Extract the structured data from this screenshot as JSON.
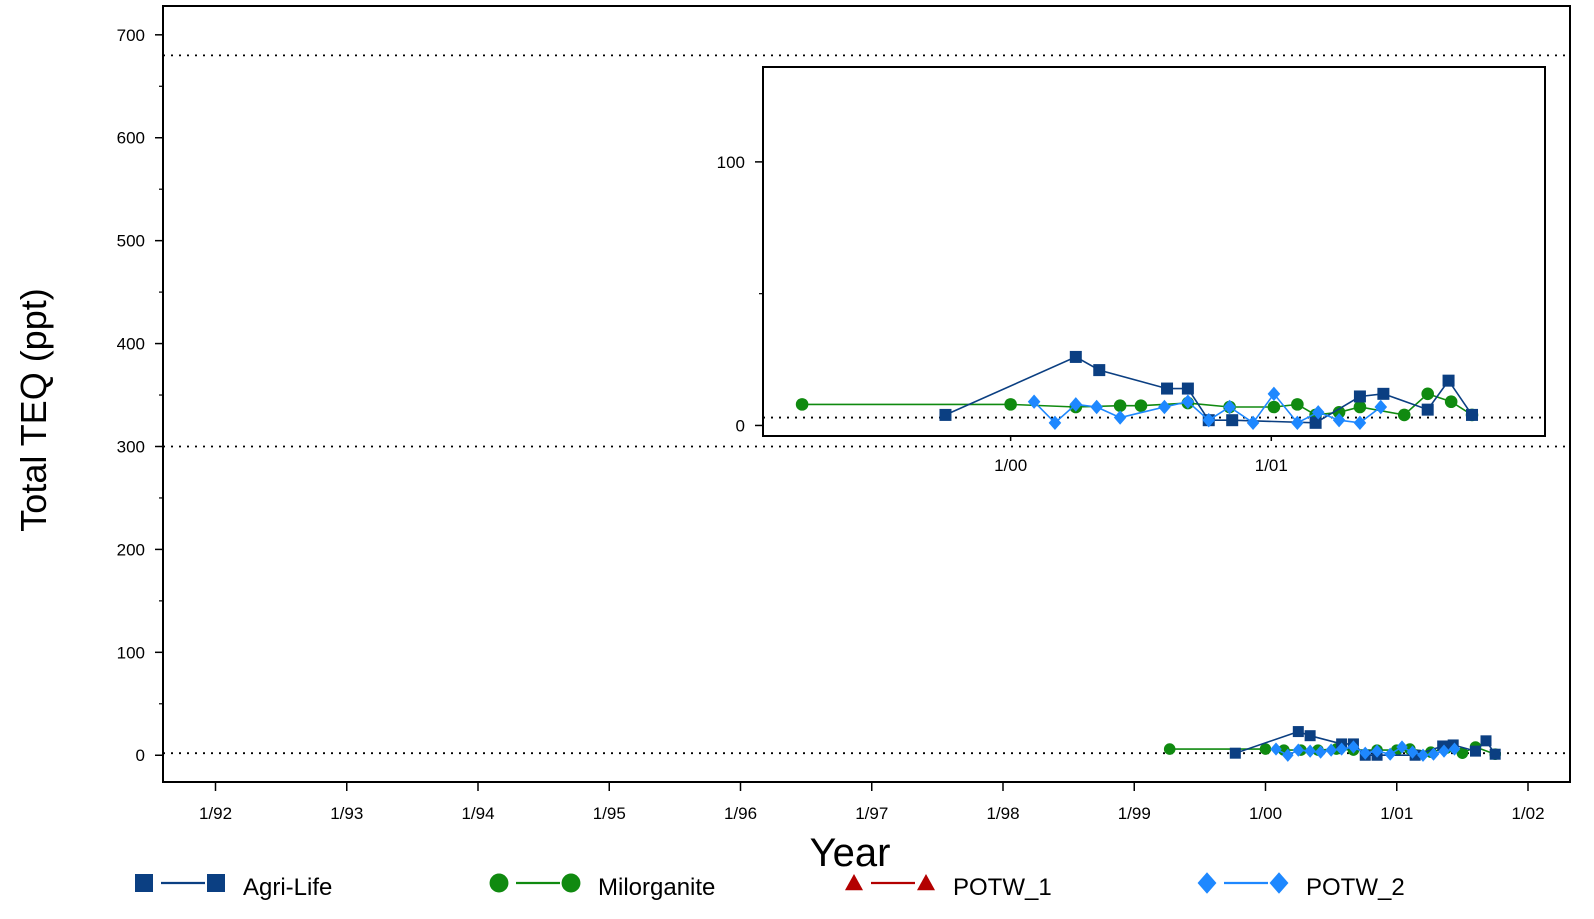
{
  "chart_data": [
    {
      "type": "line",
      "panel": "main",
      "xlabel": "Year",
      "ylabel": "Total TEQ (ppt)",
      "x_ticks": [
        "1/92",
        "1/93",
        "1/94",
        "1/95",
        "1/96",
        "1/97",
        "1/98",
        "1/99",
        "1/00",
        "1/01",
        "1/02"
      ],
      "y_ticks": [
        "0",
        "100",
        "200",
        "300",
        "400",
        "500",
        "600",
        "700"
      ],
      "xlim": [
        1991.6,
        2002.32
      ],
      "ylim": [
        -26,
        728
      ],
      "grid": false,
      "reference_lines": [
        2,
        300,
        680
      ],
      "legend_position": "bottom",
      "series": [
        {
          "name": "Agri-Life",
          "color": "#0b3f82",
          "marker": "square",
          "points": [
            [
              1999.77,
              2
            ],
            [
              2000.25,
              23
            ],
            [
              2000.34,
              19
            ],
            [
              2000.58,
              11
            ],
            [
              2000.67,
              11
            ],
            [
              2000.76,
              0
            ],
            [
              2000.85,
              0
            ],
            [
              2001.14,
              0
            ],
            [
              2001.35,
              9
            ],
            [
              2001.43,
              10
            ],
            [
              2001.6,
              4
            ],
            [
              2001.68,
              14
            ],
            [
              2001.75,
              1
            ]
          ]
        },
        {
          "name": "Milorganite",
          "color": "#108a10",
          "marker": "circle",
          "points": [
            [
              1999.27,
              6
            ],
            [
              2000.0,
              6
            ],
            [
              2000.14,
              5
            ],
            [
              2000.27,
              5
            ],
            [
              2000.4,
              5
            ],
            [
              2000.54,
              6
            ],
            [
              2000.67,
              5
            ],
            [
              2000.85,
              5
            ],
            [
              2001.0,
              5
            ],
            [
              2001.1,
              6
            ],
            [
              2001.26,
              3
            ],
            [
              2001.38,
              7
            ],
            [
              2001.5,
              2
            ],
            [
              2001.6,
              8
            ],
            [
              2001.75,
              1
            ]
          ]
        },
        {
          "name": "POTW_1",
          "color": "#b30000",
          "marker": "triangle",
          "points": []
        },
        {
          "name": "POTW_2",
          "color": "#1e88ff",
          "marker": "diamond",
          "points": [
            [
              2000.08,
              6
            ],
            [
              2000.17,
              0
            ],
            [
              2000.25,
              5
            ],
            [
              2000.34,
              4
            ],
            [
              2000.42,
              3
            ],
            [
              2000.5,
              5
            ],
            [
              2000.58,
              6
            ],
            [
              2000.67,
              8
            ],
            [
              2000.76,
              2
            ],
            [
              2000.85,
              4
            ],
            [
              2000.95,
              1
            ],
            [
              2001.04,
              8
            ],
            [
              2001.12,
              3
            ],
            [
              2001.2,
              0
            ],
            [
              2001.28,
              1
            ],
            [
              2001.36,
              4
            ],
            [
              2001.44,
              6
            ]
          ]
        }
      ]
    },
    {
      "type": "line",
      "panel": "inset",
      "x_ticks": [
        "1/00",
        "1/01"
      ],
      "y_ticks": [
        "0",
        "100"
      ],
      "xlim": [
        1999.05,
        2002.05
      ],
      "ylim": [
        -4,
        136
      ],
      "reference_lines": [
        3
      ],
      "series": [
        {
          "name": "Agri-Life",
          "color": "#0b3f82",
          "marker": "square",
          "points": [
            [
              1999.75,
              4
            ],
            [
              2000.25,
              26
            ],
            [
              2000.34,
              21
            ],
            [
              2000.6,
              14
            ],
            [
              2000.68,
              14
            ],
            [
              2000.76,
              2
            ],
            [
              2000.85,
              2
            ],
            [
              2001.17,
              1
            ],
            [
              2001.34,
              11
            ],
            [
              2001.43,
              12
            ],
            [
              2001.6,
              6
            ],
            [
              2001.68,
              17
            ],
            [
              2001.77,
              4
            ]
          ]
        },
        {
          "name": "Milorganite",
          "color": "#108a10",
          "marker": "circle",
          "points": [
            [
              1999.2,
              8
            ],
            [
              2000.0,
              8
            ],
            [
              2000.25,
              7
            ],
            [
              2000.42,
              7.5
            ],
            [
              2000.5,
              7.5
            ],
            [
              2000.68,
              8.5
            ],
            [
              2000.84,
              7
            ],
            [
              2001.01,
              7
            ],
            [
              2001.1,
              8
            ],
            [
              2001.17,
              4
            ],
            [
              2001.26,
              5
            ],
            [
              2001.34,
              7
            ],
            [
              2001.51,
              4
            ],
            [
              2001.6,
              12
            ],
            [
              2001.69,
              9
            ],
            [
              2001.77,
              4
            ]
          ]
        },
        {
          "name": "POTW_2",
          "color": "#1e88ff",
          "marker": "diamond",
          "points": [
            [
              2000.09,
              9
            ],
            [
              2000.17,
              1
            ],
            [
              2000.25,
              8
            ],
            [
              2000.33,
              7
            ],
            [
              2000.42,
              3
            ],
            [
              2000.59,
              7
            ],
            [
              2000.68,
              9
            ],
            [
              2000.76,
              2
            ],
            [
              2000.84,
              7
            ],
            [
              2000.93,
              1
            ],
            [
              2001.01,
              12
            ],
            [
              2001.1,
              1
            ],
            [
              2001.18,
              5
            ],
            [
              2001.26,
              2
            ],
            [
              2001.34,
              1
            ],
            [
              2001.42,
              7
            ]
          ]
        }
      ]
    }
  ]
}
